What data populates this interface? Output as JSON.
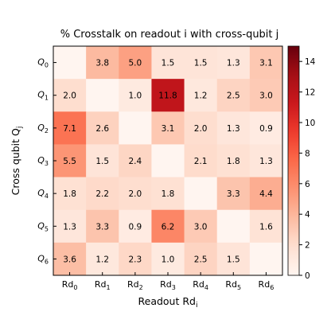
{
  "chart_data": {
    "type": "heatmap",
    "title": "% Crosstalk on readout i with cross-qubit j",
    "xlabel": "Readout Rd",
    "xlabel_sub": "i",
    "ylabel": "Cross qubit Q",
    "ylabel_sub": "j",
    "x_tick_labels": [
      {
        "base": "Rd",
        "sub": "0"
      },
      {
        "base": "Rd",
        "sub": "1"
      },
      {
        "base": "Rd",
        "sub": "2"
      },
      {
        "base": "Rd",
        "sub": "3"
      },
      {
        "base": "Rd",
        "sub": "4"
      },
      {
        "base": "Rd",
        "sub": "5"
      },
      {
        "base": "Rd",
        "sub": "6"
      }
    ],
    "y_tick_labels": [
      {
        "base": "Q",
        "sub": "0"
      },
      {
        "base": "Q",
        "sub": "1"
      },
      {
        "base": "Q",
        "sub": "2"
      },
      {
        "base": "Q",
        "sub": "3"
      },
      {
        "base": "Q",
        "sub": "4"
      },
      {
        "base": "Q",
        "sub": "5"
      },
      {
        "base": "Q",
        "sub": "6"
      }
    ],
    "values": [
      [
        null,
        3.8,
        5.0,
        1.5,
        1.5,
        1.3,
        3.1
      ],
      [
        2.0,
        null,
        1.0,
        11.8,
        1.2,
        2.5,
        3.0
      ],
      [
        7.1,
        2.6,
        null,
        3.1,
        2.0,
        1.3,
        0.9
      ],
      [
        5.5,
        1.5,
        2.4,
        null,
        2.1,
        1.8,
        1.3
      ],
      [
        1.8,
        2.2,
        2.0,
        1.8,
        null,
        3.3,
        4.4
      ],
      [
        1.3,
        3.3,
        0.9,
        6.2,
        3.0,
        null,
        1.6
      ],
      [
        3.6,
        1.2,
        2.3,
        1.0,
        2.5,
        1.5,
        null
      ]
    ],
    "colorscale": "Reds",
    "color_min": "#fff5f0",
    "color_max": "#67000d",
    "colorbar_range": [
      0,
      15
    ],
    "colorbar_ticks": [
      "0",
      "2",
      "4",
      "6",
      "8",
      "10",
      "12",
      "14"
    ]
  }
}
